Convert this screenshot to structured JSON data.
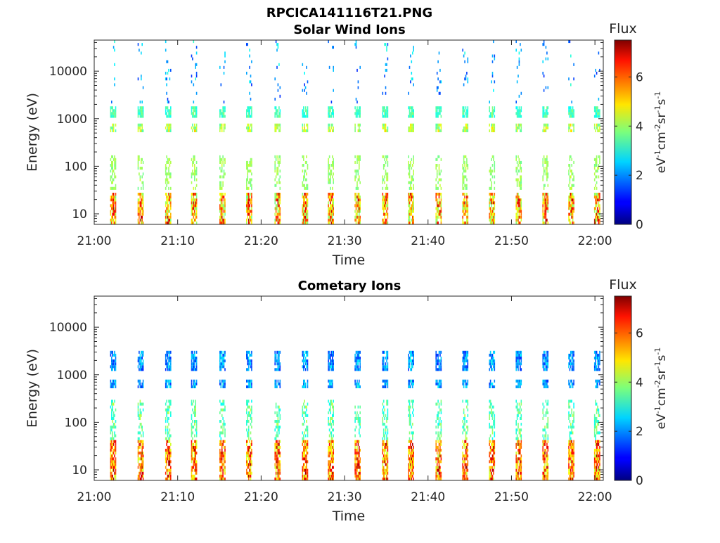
{
  "figure": {
    "main_title": "RPCICA141116T21.PNG"
  },
  "chart_data": [
    {
      "type": "heatmap",
      "title": "Solar Wind Ions",
      "xlabel": "Time",
      "ylabel": "Energy (eV)",
      "x_ticks": [
        "21:00",
        "21:10",
        "21:20",
        "21:30",
        "21:40",
        "21:50",
        "22:00"
      ],
      "x_range": [
        "21:00",
        "22:01"
      ],
      "y_ticks": [
        "10",
        "100",
        "1000",
        "10000"
      ],
      "y_tick_values": [
        10,
        100,
        1000,
        10000
      ],
      "y_range": [
        6,
        45000
      ],
      "y_scale": "log",
      "grid": false,
      "colorbar": {
        "label": "Flux",
        "unit": "eV-1cm-2sr-1s-1",
        "ticks": [
          "0",
          "2",
          "4",
          "6"
        ],
        "range": [
          0,
          7.5
        ],
        "colormap": "jet"
      },
      "sweep_start_minutes": [
        1.9,
        5.2,
        8.5,
        11.6,
        15.0,
        18.2,
        21.6,
        24.9,
        28.0,
        31.2,
        34.5,
        37.6,
        40.9,
        44.1,
        47.3,
        50.5,
        53.7,
        56.8,
        59.9
      ],
      "energy_bands": [
        {
          "energy_eV": [
            6,
            28
          ],
          "flux_range": [
            3.6,
            7.2
          ]
        },
        {
          "energy_eV": [
            30,
            160
          ],
          "flux_range": [
            3.6,
            4.4
          ]
        },
        {
          "energy_eV": [
            520,
            800
          ],
          "flux_range": [
            3.3,
            5.1
          ]
        },
        {
          "energy_eV": [
            1100,
            1800
          ],
          "flux_range": [
            2.8,
            3.9
          ]
        },
        {
          "energy_eV": [
            2000,
            45000
          ],
          "flux_range": [
            1.2,
            3.2
          ]
        }
      ]
    },
    {
      "type": "heatmap",
      "title": "Cometary Ions",
      "xlabel": "Time",
      "ylabel": "Energy (eV)",
      "x_ticks": [
        "21:00",
        "21:10",
        "21:20",
        "21:30",
        "21:40",
        "21:50",
        "22:00"
      ],
      "x_range": [
        "21:00",
        "22:01"
      ],
      "y_ticks": [
        "10",
        "100",
        "1000",
        "10000"
      ],
      "y_tick_values": [
        10,
        100,
        1000,
        10000
      ],
      "y_range": [
        6,
        45000
      ],
      "y_scale": "log",
      "grid": false,
      "colorbar": {
        "label": "Flux",
        "unit": "eV-1cm-2sr-1s-1",
        "ticks": [
          "0",
          "2",
          "4",
          "6"
        ],
        "range": [
          0,
          7.5
        ],
        "colormap": "jet"
      },
      "sweep_start_minutes": [
        1.9,
        5.2,
        8.5,
        11.6,
        15.0,
        18.2,
        21.6,
        24.9,
        28.0,
        31.2,
        34.5,
        37.6,
        40.9,
        44.1,
        47.3,
        50.5,
        53.7,
        56.8,
        59.9
      ],
      "energy_bands": [
        {
          "energy_eV": [
            6,
            40
          ],
          "flux_range": [
            4.2,
            7.4
          ]
        },
        {
          "energy_eV": [
            40,
            300
          ],
          "flux_range": [
            2.8,
            4.3
          ]
        },
        {
          "energy_eV": [
            550,
            800
          ],
          "flux_range": [
            1.3,
            3.1
          ]
        },
        {
          "energy_eV": [
            1200,
            3000
          ],
          "flux_range": [
            1.2,
            3.0
          ]
        }
      ]
    }
  ]
}
